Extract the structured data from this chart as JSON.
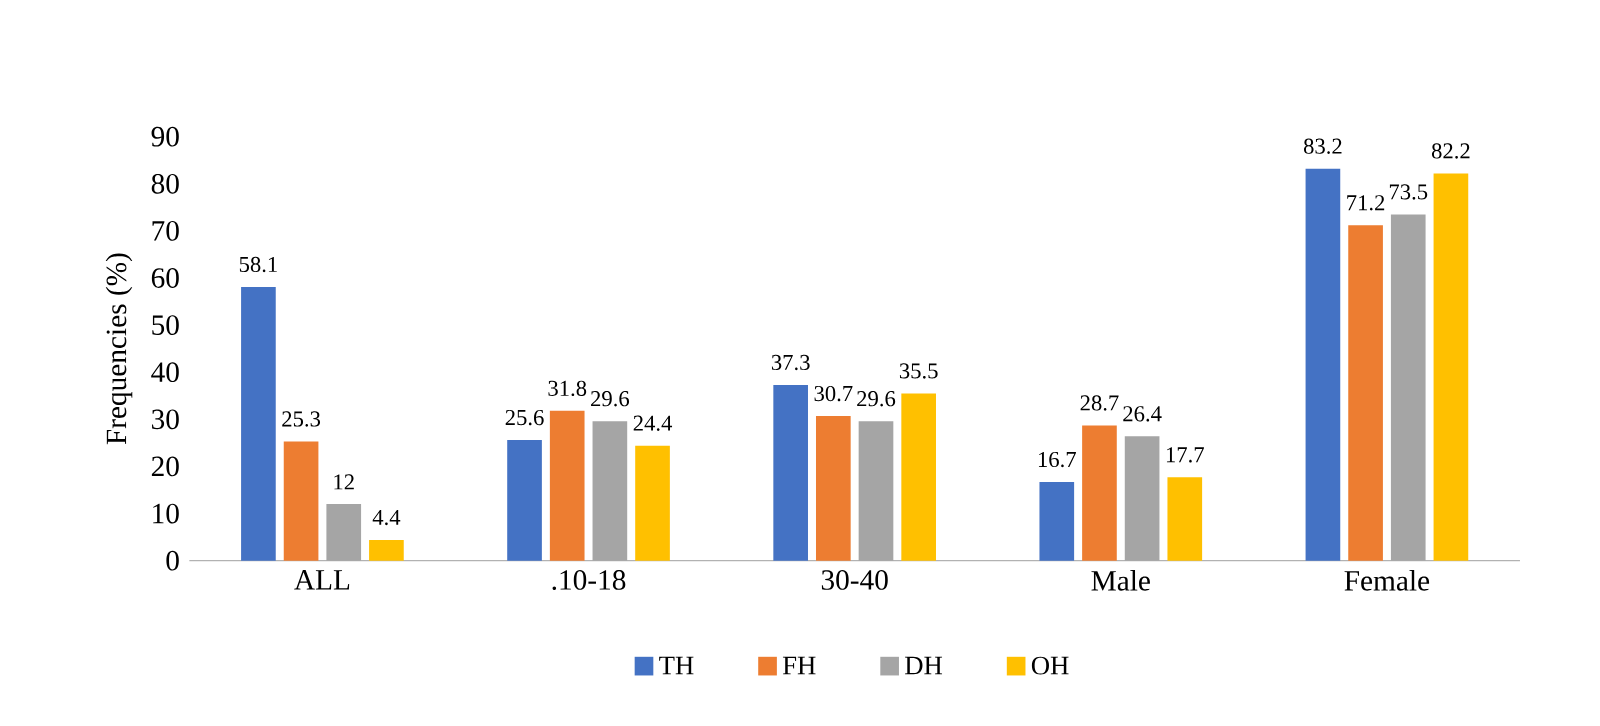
{
  "chart_data": {
    "type": "bar",
    "ylabel": "Frequencies  (%)",
    "categories": [
      "ALL",
      ".10-18",
      "30-40",
      "Male",
      "Female"
    ],
    "series": [
      {
        "name": "TH",
        "color": "#4472c4",
        "values": [
          58.1,
          25.6,
          37.3,
          16.7,
          83.2
        ]
      },
      {
        "name": "FH",
        "color": "#ed7d31",
        "values": [
          25.3,
          31.8,
          30.7,
          28.7,
          71.2
        ]
      },
      {
        "name": "DH",
        "color": "#a5a5a5",
        "values": [
          12,
          29.6,
          29.6,
          26.4,
          73.5
        ]
      },
      {
        "name": "OH",
        "color": "#ffc000",
        "values": [
          4.4,
          24.4,
          35.5,
          17.7,
          82.2
        ]
      }
    ],
    "ylim": [
      0,
      90
    ],
    "yticks": [
      0,
      10,
      20,
      30,
      40,
      50,
      60,
      70,
      80,
      90
    ],
    "data_labels": true,
    "legend": "bottom"
  }
}
